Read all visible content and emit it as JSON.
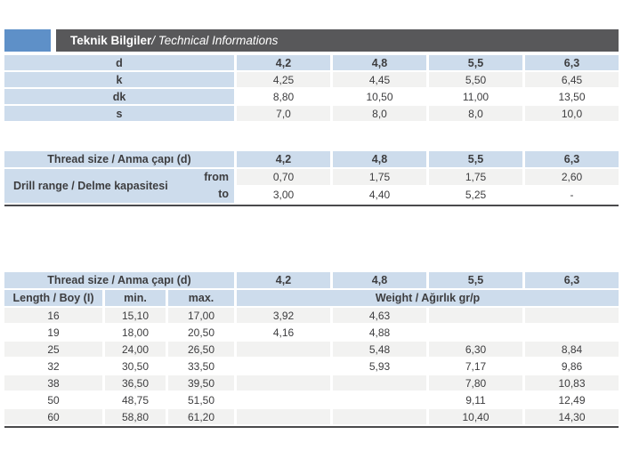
{
  "title_bar": {
    "title_bold": "Teknik Bilgiler",
    "title_italic": " / Technical Informations"
  },
  "colors": {
    "accent_blue": "#5e90c8",
    "bar_gray": "#58585a",
    "header_blue": "#cddcec",
    "stripe_gray": "#f2f2f1",
    "rule_dark": "#4a4a4c",
    "text_dark": "#3d3d3f"
  },
  "dimensions_table": {
    "header_label": "d",
    "header_values": [
      "4,2",
      "4,8",
      "5,5",
      "6,3"
    ],
    "rows": [
      {
        "label": "k",
        "values": [
          "4,25",
          "4,45",
          "5,50",
          "6,45"
        ]
      },
      {
        "label": "dk",
        "values": [
          "8,80",
          "10,50",
          "11,00",
          "13,50"
        ]
      },
      {
        "label": "s",
        "values": [
          "7,0",
          "8,0",
          "8,0",
          "10,0"
        ]
      }
    ]
  },
  "drill_table": {
    "header_label": "Thread size / Anma çapı (d)",
    "header_values": [
      "4,2",
      "4,8",
      "5,5",
      "6,3"
    ],
    "row_label": "Drill range / Delme kapasitesi",
    "from_label": "from",
    "to_label": "to",
    "from_values": [
      "0,70",
      "1,75",
      "1,75",
      "2,60"
    ],
    "to_values": [
      "3,00",
      "4,40",
      "5,25",
      "-"
    ]
  },
  "length_weight_table": {
    "header_label": "Thread size / Anma çapı (d)",
    "header_values": [
      "4,2",
      "4,8",
      "5,5",
      "6,3"
    ],
    "length_label": "Length / Boy (I)",
    "min_label": "min.",
    "max_label": "max.",
    "weight_label": "Weight / Ağırlık gr/p",
    "rows": [
      {
        "length": "16",
        "min": "15,10",
        "max": "17,00",
        "weights": [
          "3,92",
          "4,63",
          "",
          ""
        ]
      },
      {
        "length": "19",
        "min": "18,00",
        "max": "20,50",
        "weights": [
          "4,16",
          "4,88",
          "",
          ""
        ]
      },
      {
        "length": "25",
        "min": "24,00",
        "max": "26,50",
        "weights": [
          "",
          "5,48",
          "6,30",
          "8,84"
        ]
      },
      {
        "length": "32",
        "min": "30,50",
        "max": "33,50",
        "weights": [
          "",
          "5,93",
          "7,17",
          "9,86"
        ]
      },
      {
        "length": "38",
        "min": "36,50",
        "max": "39,50",
        "weights": [
          "",
          "",
          "7,80",
          "10,83"
        ]
      },
      {
        "length": "50",
        "min": "48,75",
        "max": "51,50",
        "weights": [
          "",
          "",
          "9,11",
          "12,49"
        ]
      },
      {
        "length": "60",
        "min": "58,80",
        "max": "61,20",
        "weights": [
          "",
          "",
          "10,40",
          "14,30"
        ]
      }
    ]
  }
}
